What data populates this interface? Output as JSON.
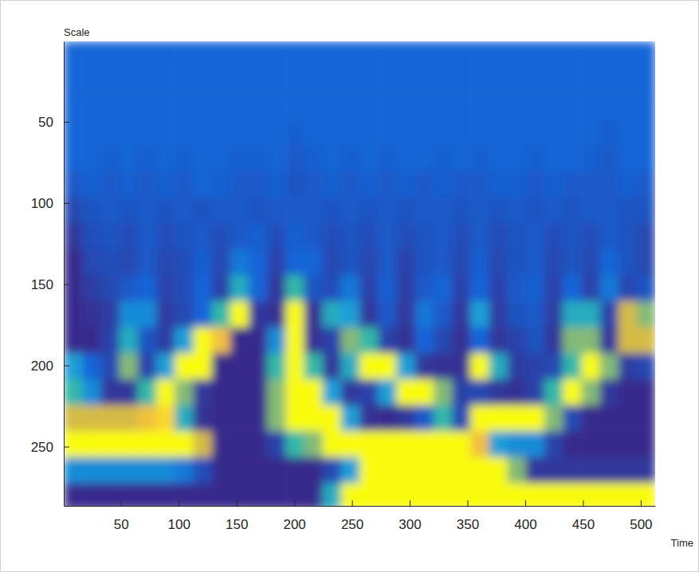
{
  "chart_data": {
    "type": "heatmap",
    "x_label": "Time",
    "y_label": "Scale",
    "x": [
      8.5,
      24.5,
      40.5,
      56.5,
      72.5,
      88.5,
      104.5,
      120.5,
      136.5,
      152.5,
      168.5,
      184.5,
      200.5,
      216.5,
      232.5,
      248.5,
      264.5,
      280.5,
      296.5,
      312.5,
      328.5,
      344.5,
      360.5,
      376.5,
      392.5,
      408.5,
      424.5,
      440.5,
      456.5,
      472.5,
      488.5,
      504.5
    ],
    "y": [
      8.5,
      24.5,
      40.5,
      56.5,
      72.5,
      88.5,
      104.5,
      120.5,
      136.5,
      152.5,
      168.5,
      184.5,
      200.5,
      216.5,
      232.5,
      248.5,
      264.5,
      280.5
    ],
    "cells": [
      [
        0,
        0,
        0,
        0,
        0,
        0,
        0,
        0,
        0,
        0,
        0,
        0,
        0,
        0,
        0,
        0,
        0,
        0,
        0,
        0,
        0,
        0,
        0,
        0,
        0,
        0,
        0,
        0,
        0,
        0,
        0,
        0
      ],
      [
        0,
        0,
        0,
        0,
        0,
        0,
        0,
        0,
        0,
        0,
        0,
        0,
        0,
        0,
        0,
        0,
        0,
        0,
        0,
        0,
        0,
        0,
        0,
        0,
        0,
        0,
        0,
        0,
        0,
        0,
        0,
        0
      ],
      [
        0,
        0,
        0,
        0,
        0,
        0,
        0,
        0,
        0,
        0,
        0,
        0,
        0,
        0,
        0,
        0,
        0,
        0,
        0,
        0,
        0,
        0,
        0,
        0,
        0,
        0,
        0,
        0,
        0,
        0,
        0,
        0
      ],
      [
        0,
        0,
        0,
        0,
        0,
        0,
        0,
        0,
        0,
        0,
        0,
        0,
        -0.1,
        0,
        0,
        0,
        0,
        0,
        0,
        0,
        0,
        0,
        0,
        0,
        0,
        0,
        0,
        0,
        0,
        -0.1,
        0,
        0
      ],
      [
        0,
        0,
        -0.1,
        0,
        -0.1,
        0,
        -0.1,
        0,
        0,
        -0.1,
        -0.1,
        0,
        -0.2,
        -0.1,
        0,
        -0.1,
        0,
        -0.1,
        0,
        0,
        -0.1,
        0,
        -0.1,
        0,
        0,
        -0.1,
        0,
        0,
        -0.1,
        -0.2,
        0,
        0
      ],
      [
        -0.2,
        -0.1,
        -0.2,
        -0.1,
        -0.2,
        -0.1,
        -0.2,
        0,
        -0.1,
        -0.2,
        -0.2,
        -0.1,
        -0.3,
        -0.2,
        -0.1,
        -0.2,
        -0.1,
        -0.2,
        -0.1,
        -0.2,
        -0.1,
        -0.2,
        -0.2,
        -0.1,
        -0.1,
        -0.2,
        -0.1,
        -0.2,
        -0.2,
        -0.2,
        -0.1,
        -0.2
      ],
      [
        -0.5,
        -0.3,
        -0.2,
        -0.3,
        -0.2,
        -0.3,
        -0.2,
        -0.3,
        -0.2,
        -0.2,
        -0.3,
        -0.2,
        -0.2,
        -0.2,
        -0.3,
        -0.2,
        -0.3,
        -0.2,
        -0.3,
        -0.2,
        -0.2,
        -0.3,
        -0.2,
        -0.3,
        -0.2,
        -0.3,
        -0.2,
        -0.3,
        -0.2,
        -0.2,
        -0.3,
        -0.3
      ],
      [
        -0.8,
        -0.4,
        -0.3,
        -0.4,
        -0.2,
        -0.4,
        -0.3,
        -0.2,
        -0.4,
        -0.2,
        -0.1,
        -0.4,
        -0.1,
        -0.2,
        -0.4,
        -0.3,
        -0.4,
        -0.2,
        -0.4,
        -0.3,
        -0.2,
        -0.4,
        -0.2,
        -0.4,
        -0.3,
        -0.2,
        -0.4,
        -0.3,
        -0.4,
        -0.2,
        -0.3,
        -0.5
      ],
      [
        -1,
        -0.5,
        -0.4,
        -0.5,
        -0.2,
        -0.5,
        -0.4,
        -0.1,
        -0.5,
        0.1,
        0,
        -0.6,
        0,
        0,
        -0.5,
        -0.3,
        -0.5,
        -0.2,
        -0.6,
        -0.3,
        -0.2,
        -0.5,
        -0.1,
        -0.5,
        -0.3,
        -0.2,
        -0.5,
        -0.3,
        -0.5,
        0,
        -0.3,
        -0.5
      ],
      [
        -1,
        -0.7,
        -0.5,
        -0.2,
        0,
        -0.6,
        -0.4,
        0,
        -0.6,
        0.4,
        0,
        -0.8,
        0.5,
        -0.3,
        -0.4,
        0.1,
        -0.6,
        -0.1,
        -0.7,
        -0.2,
        0,
        -0.6,
        0,
        -0.6,
        -0.2,
        -0.1,
        -0.6,
        0,
        -0.6,
        0.1,
        -0.5,
        -0.3
      ],
      [
        -1,
        -0.9,
        -0.7,
        0.2,
        0.2,
        -0.7,
        -0.5,
        0,
        0.5,
        1,
        -0.8,
        -0.9,
        1,
        -0.9,
        0.4,
        0.3,
        -0.8,
        -0.2,
        -0.8,
        0.1,
        -0.2,
        -0.8,
        0.3,
        -0.7,
        -0.3,
        -0.2,
        -0.7,
        0.4,
        0.4,
        -0.6,
        0.7,
        0.6
      ],
      [
        -1,
        -1,
        -0.6,
        0.4,
        -0.3,
        -0.7,
        0.3,
        1,
        0.8,
        -1,
        -1,
        0.2,
        1,
        -0.9,
        -0.6,
        0.6,
        0.5,
        -0.6,
        -0.9,
        0,
        -0.5,
        -0.9,
        0,
        -0.8,
        -0.6,
        -0.3,
        -0.8,
        0.6,
        0.6,
        -0.8,
        0.7,
        0.7
      ],
      [
        0.3,
        0,
        -0.5,
        0.6,
        -0.6,
        0.3,
        1,
        1,
        -1,
        -1,
        -1,
        0.5,
        1,
        0.5,
        -0.8,
        0.4,
        1,
        1,
        0.3,
        -0.8,
        -0.9,
        -0.9,
        1,
        0.4,
        -0.7,
        -0.6,
        -0.5,
        0.5,
        1,
        0.6,
        -0.7,
        -0.5
      ],
      [
        0.5,
        0.2,
        -0.8,
        -0.8,
        0.5,
        1,
        0.6,
        -0.8,
        -1,
        -1,
        -1,
        0.6,
        1,
        1,
        0.3,
        -0.8,
        -0.6,
        0.3,
        1,
        1,
        0.6,
        -0.6,
        -0.5,
        -0.8,
        -0.9,
        -0.6,
        0.5,
        1,
        0.6,
        -0.8,
        -1,
        -1
      ],
      [
        0.7,
        0.7,
        0.7,
        0.7,
        0.8,
        0.9,
        0.4,
        -0.9,
        -1,
        -1,
        -1,
        0.6,
        1,
        1,
        1,
        0.3,
        -0.9,
        -1,
        -0.8,
        -0.2,
        0.5,
        -0.5,
        1,
        1,
        1,
        1,
        0.6,
        -0.5,
        -1,
        -1,
        -1,
        -1
      ],
      [
        1,
        1,
        1,
        1,
        1,
        1,
        1,
        0.7,
        -1,
        -1,
        -1,
        -0.6,
        0.5,
        0.6,
        1,
        1,
        1,
        1,
        1,
        1,
        1,
        1,
        0.8,
        0.3,
        0.2,
        0.2,
        -0.6,
        -1,
        -1,
        -1,
        -1,
        -1
      ],
      [
        0.2,
        0.2,
        0.2,
        0.2,
        0.2,
        0.2,
        0.1,
        -0.4,
        -1,
        -1,
        -1,
        -1,
        -1,
        -1,
        -0.5,
        0.3,
        1,
        1,
        1,
        1,
        1,
        1,
        1,
        1,
        0.6,
        -0.8,
        -0.8,
        -0.8,
        -0.8,
        -0.8,
        -0.8,
        -0.8
      ],
      [
        -1,
        -1,
        -1,
        -1,
        -1,
        -1,
        -1,
        -1,
        -1,
        -1,
        -1,
        -1,
        -1,
        -1,
        0.4,
        1,
        1,
        1,
        1,
        1,
        1,
        1,
        1,
        1,
        1,
        1,
        1,
        1,
        1,
        1,
        1,
        1
      ]
    ],
    "zlim": [
      -1,
      1
    ],
    "xlim": [
      0.5,
      512.5
    ],
    "ylim": [
      286.5,
      0.5
    ],
    "xticks": [
      50,
      100,
      150,
      200,
      250,
      300,
      350,
      400,
      450,
      500
    ],
    "yticks": [
      50,
      100,
      150,
      200,
      250
    ]
  }
}
